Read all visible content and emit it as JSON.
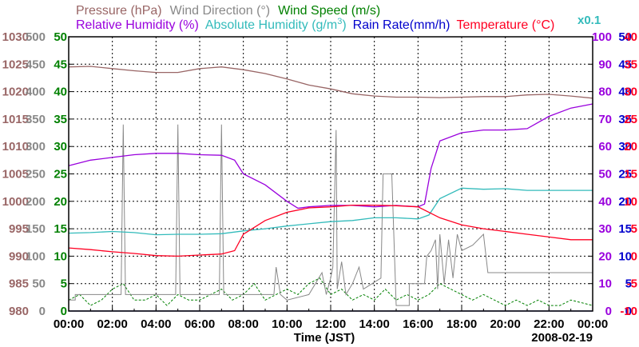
{
  "chart_data": {
    "type": "line",
    "date_label": "2008-02-19",
    "xlabel": "Time (JST)",
    "x_ticks": [
      "00:00",
      "02:00",
      "04:00",
      "06:00",
      "08:00",
      "10:00",
      "12:00",
      "14:00",
      "16:00",
      "18:00",
      "20:00",
      "22:00",
      "00:00"
    ],
    "xlim_hours": [
      0,
      24
    ],
    "colors": {
      "pressure": "#996666",
      "wind_direction": "#888888",
      "wind_speed": "#008000",
      "rh": "#9900dd",
      "ah": "#33bbbb",
      "rain": "#0000cc",
      "temp": "#ff0022",
      "grid": "#000000"
    },
    "legend_row1": [
      {
        "key": "pressure",
        "label": "Pressure (hPa)"
      },
      {
        "key": "wind_direction",
        "label": "Wind Direction (°)"
      },
      {
        "key": "wind_speed",
        "label": "Wind Speed (m/s)"
      }
    ],
    "legend_row2": [
      {
        "key": "rh",
        "label": "Relative Humidity (%)"
      },
      {
        "key": "ah",
        "label": "Absolute Humidity (g/m",
        "sup": "3",
        "tail": ")"
      },
      {
        "key": "rain",
        "label": "Rain Rate(mm/h)"
      },
      {
        "key": "temp",
        "label": "Temperature (°C)"
      }
    ],
    "scale_note": "x0.1",
    "left_axes": [
      {
        "key": "pressure",
        "ticks": [
          "980",
          "985",
          "990",
          "995",
          "1000",
          "1005",
          "1010",
          "1015",
          "1020",
          "1025",
          "1030"
        ],
        "ylim": [
          980,
          1030
        ]
      },
      {
        "key": "wind_direction",
        "ticks": [
          "0",
          "50",
          "100",
          "150",
          "200",
          "250",
          "300",
          "350",
          "400",
          "450",
          "500"
        ],
        "ylim": [
          0,
          500
        ]
      },
      {
        "key": "wind_speed",
        "ticks": [
          "0",
          "5",
          "10",
          "15",
          "20",
          "25",
          "30",
          "35",
          "40",
          "45",
          "50"
        ],
        "ylim": [
          0,
          50
        ]
      }
    ],
    "right_axes": [
      {
        "key": "rh",
        "ticks": [
          "0",
          "10",
          "20",
          "30",
          "40",
          "50",
          "60",
          "70",
          "80",
          "90",
          "100"
        ],
        "ylim": [
          0,
          100
        ]
      },
      {
        "key": "rain",
        "ticks": [
          "0",
          "5",
          "10",
          "15",
          "20",
          "25",
          "30",
          "35",
          "40",
          "45",
          "50"
        ],
        "ylim": [
          0,
          50
        ]
      },
      {
        "key": "temp",
        "ticks": [
          "-10",
          "-5",
          "0",
          "5",
          "10",
          "15",
          "20",
          "25",
          "30",
          "35",
          "40"
        ],
        "ylim": [
          -10,
          40
        ]
      }
    ],
    "series": [
      {
        "name": "Pressure (hPa)",
        "key": "pressure",
        "axis_min": 980,
        "axis_max": 1030,
        "points": [
          [
            0,
            1024.5
          ],
          [
            1,
            1024.6
          ],
          [
            2,
            1024.2
          ],
          [
            3,
            1023.8
          ],
          [
            4,
            1023.5
          ],
          [
            5,
            1023.5
          ],
          [
            6,
            1024.2
          ],
          [
            7,
            1024.5
          ],
          [
            8,
            1024
          ],
          [
            9,
            1023.3
          ],
          [
            10,
            1022.3
          ],
          [
            11,
            1021.2
          ],
          [
            12,
            1020.5
          ],
          [
            13,
            1019.6
          ],
          [
            14,
            1019.2
          ],
          [
            15,
            1019
          ],
          [
            16,
            1019
          ],
          [
            17,
            1018.9
          ],
          [
            18,
            1019
          ],
          [
            19,
            1019.1
          ],
          [
            20,
            1019.1
          ],
          [
            21,
            1019.4
          ],
          [
            22,
            1019.5
          ],
          [
            23,
            1019.2
          ],
          [
            24,
            1018.8
          ]
        ]
      },
      {
        "name": "Relative Humidity (%)",
        "key": "rh",
        "axis_min": 0,
        "axis_max": 100,
        "points": [
          [
            0,
            53
          ],
          [
            1,
            55
          ],
          [
            2,
            56
          ],
          [
            3,
            57
          ],
          [
            4,
            57.5
          ],
          [
            5,
            57.5
          ],
          [
            6,
            57
          ],
          [
            7,
            56.8
          ],
          [
            7.6,
            55
          ],
          [
            8,
            50
          ],
          [
            9,
            46
          ],
          [
            10,
            40
          ],
          [
            10.5,
            37.5
          ],
          [
            11,
            38
          ],
          [
            12,
            38.5
          ],
          [
            13,
            38.5
          ],
          [
            14,
            38
          ],
          [
            15,
            38.5
          ],
          [
            16,
            38
          ],
          [
            16.3,
            39
          ],
          [
            16.6,
            52
          ],
          [
            17,
            62
          ],
          [
            18,
            65
          ],
          [
            19,
            66
          ],
          [
            20,
            66
          ],
          [
            21,
            66.5
          ],
          [
            22,
            71
          ],
          [
            23,
            74
          ],
          [
            24,
            75.5
          ]
        ]
      },
      {
        "name": "Absolute Humidity (g/m3)",
        "key": "ah",
        "axis_min": 0,
        "axis_max": 50,
        "points": [
          [
            0,
            14.2
          ],
          [
            1,
            14.3
          ],
          [
            2,
            14.5
          ],
          [
            3,
            14.3
          ],
          [
            4,
            13.9
          ],
          [
            5,
            14
          ],
          [
            6,
            14
          ],
          [
            7,
            14.1
          ],
          [
            8,
            14.6
          ],
          [
            9,
            15
          ],
          [
            10,
            15.5
          ],
          [
            11,
            15.9
          ],
          [
            12,
            16.3
          ],
          [
            13,
            16.5
          ],
          [
            14,
            17
          ],
          [
            15,
            17
          ],
          [
            16,
            16.8
          ],
          [
            16.5,
            17.5
          ],
          [
            17,
            20.5
          ],
          [
            18,
            22.4
          ],
          [
            19,
            22.2
          ],
          [
            20,
            22.3
          ],
          [
            21,
            22
          ],
          [
            22,
            22
          ],
          [
            23,
            22
          ],
          [
            24,
            22
          ]
        ]
      },
      {
        "name": "Temperature (°C)",
        "key": "temp",
        "axis_min": -10,
        "axis_max": 40,
        "points": [
          [
            0,
            1.5
          ],
          [
            1,
            1.2
          ],
          [
            2,
            0.8
          ],
          [
            3,
            0.5
          ],
          [
            4,
            0.1
          ],
          [
            5,
            0
          ],
          [
            6,
            0.2
          ],
          [
            7,
            0.4
          ],
          [
            7.6,
            1
          ],
          [
            8,
            4
          ],
          [
            9,
            6.5
          ],
          [
            10,
            8
          ],
          [
            11,
            8.8
          ],
          [
            12,
            9
          ],
          [
            13,
            9.3
          ],
          [
            14,
            9.3
          ],
          [
            15,
            9.2
          ],
          [
            16,
            9
          ],
          [
            17,
            7
          ],
          [
            18,
            5.7
          ],
          [
            19,
            5
          ],
          [
            20,
            4.5
          ],
          [
            21,
            4
          ],
          [
            22,
            3.5
          ],
          [
            23,
            3
          ],
          [
            24,
            3
          ]
        ]
      },
      {
        "name": "Wind Direction (°)",
        "key": "wind_direction",
        "axis_min": 0,
        "axis_max": 500,
        "points": [
          [
            0,
            20
          ],
          [
            0.3,
            20
          ],
          [
            0.3,
            30
          ],
          [
            2.4,
            30
          ],
          [
            2.5,
            340
          ],
          [
            2.6,
            30
          ],
          [
            4.9,
            30
          ],
          [
            5.0,
            340
          ],
          [
            5.1,
            30
          ],
          [
            6.9,
            30
          ],
          [
            7.0,
            340
          ],
          [
            7.1,
            30
          ],
          [
            8.5,
            30
          ],
          [
            9.4,
            30
          ],
          [
            9.5,
            80
          ],
          [
            9.7,
            30
          ],
          [
            10,
            20
          ],
          [
            11,
            30
          ],
          [
            11.6,
            70
          ],
          [
            11.8,
            30
          ],
          [
            12,
            60
          ],
          [
            12.1,
            80
          ],
          [
            12.25,
            330
          ],
          [
            12.3,
            40
          ],
          [
            12.5,
            90
          ],
          [
            12.7,
            30
          ],
          [
            13,
            50
          ],
          [
            13.3,
            80
          ],
          [
            13.5,
            40
          ],
          [
            14.3,
            60
          ],
          [
            14.4,
            250
          ],
          [
            14.8,
            250
          ],
          [
            15,
            10
          ],
          [
            15.6,
            10
          ],
          [
            15.6,
            50
          ],
          [
            16.3,
            50
          ],
          [
            16.4,
            100
          ],
          [
            16.6,
            110
          ],
          [
            16.8,
            130
          ],
          [
            16.9,
            40
          ],
          [
            17.0,
            140
          ],
          [
            17.2,
            50
          ],
          [
            17.4,
            130
          ],
          [
            17.6,
            60
          ],
          [
            17.8,
            140
          ],
          [
            18,
            110
          ],
          [
            18.5,
            120
          ],
          [
            19,
            140
          ],
          [
            19.2,
            70
          ],
          [
            19.5,
            70
          ],
          [
            24,
            70
          ]
        ]
      },
      {
        "name": "Wind Speed (m/s)",
        "key": "wind_speed",
        "axis_min": 0,
        "axis_max": 50,
        "points": [
          [
            0,
            2
          ],
          [
            0.5,
            3
          ],
          [
            1,
            1
          ],
          [
            1.5,
            2
          ],
          [
            2,
            4
          ],
          [
            2.5,
            5
          ],
          [
            3,
            2
          ],
          [
            3.5,
            2
          ],
          [
            4,
            3
          ],
          [
            4.5,
            1
          ],
          [
            5,
            3
          ],
          [
            5.5,
            2
          ],
          [
            6,
            2
          ],
          [
            6.5,
            3
          ],
          [
            7,
            4
          ],
          [
            7.5,
            2
          ],
          [
            8,
            3
          ],
          [
            8.5,
            5
          ],
          [
            9,
            2
          ],
          [
            9.5,
            3
          ],
          [
            10,
            4
          ],
          [
            10.5,
            3
          ],
          [
            11,
            5
          ],
          [
            11.5,
            6
          ],
          [
            12,
            3
          ],
          [
            12.5,
            4
          ],
          [
            13,
            2
          ],
          [
            13.5,
            3
          ],
          [
            14,
            2
          ],
          [
            14.5,
            4
          ],
          [
            15,
            2
          ],
          [
            15.5,
            3
          ],
          [
            16,
            2
          ],
          [
            16.5,
            3
          ],
          [
            17,
            5
          ],
          [
            17.5,
            4
          ],
          [
            18,
            3
          ],
          [
            18.5,
            2
          ],
          [
            19,
            3
          ],
          [
            19.5,
            2
          ],
          [
            20,
            1
          ],
          [
            20.5,
            2
          ],
          [
            21,
            1
          ],
          [
            21.5,
            2
          ],
          [
            22,
            1
          ],
          [
            22.5,
            1
          ],
          [
            23,
            2
          ],
          [
            24,
            1
          ]
        ]
      },
      {
        "name": "Rain Rate(mm/h)",
        "key": "rain",
        "axis_min": 0,
        "axis_max": 50,
        "points": [
          [
            0,
            0
          ],
          [
            24,
            0
          ]
        ]
      }
    ]
  }
}
